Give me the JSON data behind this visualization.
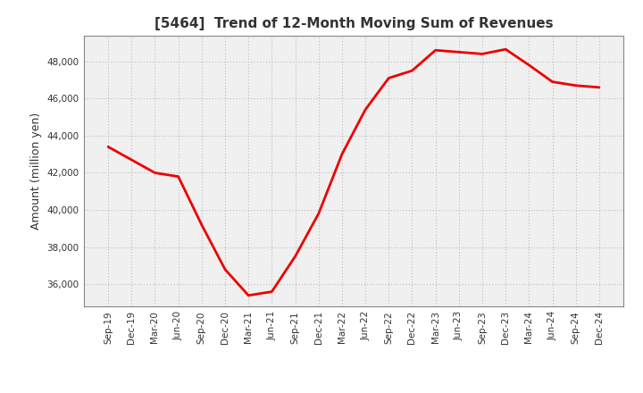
{
  "title": "[5464]  Trend of 12-Month Moving Sum of Revenues",
  "ylabel": "Amount (million yen)",
  "line_color": "#EE0000",
  "line_width": 2.0,
  "background_color": "#FFFFFF",
  "plot_bg_color": "#F0F0F0",
  "grid_color": "#BBBBBB",
  "x_labels": [
    "Sep-19",
    "Dec-19",
    "Mar-20",
    "Jun-20",
    "Sep-20",
    "Dec-20",
    "Mar-21",
    "Jun-21",
    "Sep-21",
    "Dec-21",
    "Mar-22",
    "Jun-22",
    "Sep-22",
    "Dec-22",
    "Mar-23",
    "Jun-23",
    "Sep-23",
    "Dec-23",
    "Mar-24",
    "Jun-24",
    "Sep-24",
    "Dec-24"
  ],
  "values": [
    43400,
    42700,
    42000,
    41800,
    39200,
    36800,
    35400,
    35600,
    37500,
    39800,
    43000,
    45400,
    47100,
    47500,
    48600,
    48500,
    48400,
    48650,
    47800,
    46900,
    46700,
    46600
  ],
  "ylim": [
    34800,
    49400
  ],
  "yticks": [
    36000,
    38000,
    40000,
    42000,
    44000,
    46000,
    48000
  ]
}
